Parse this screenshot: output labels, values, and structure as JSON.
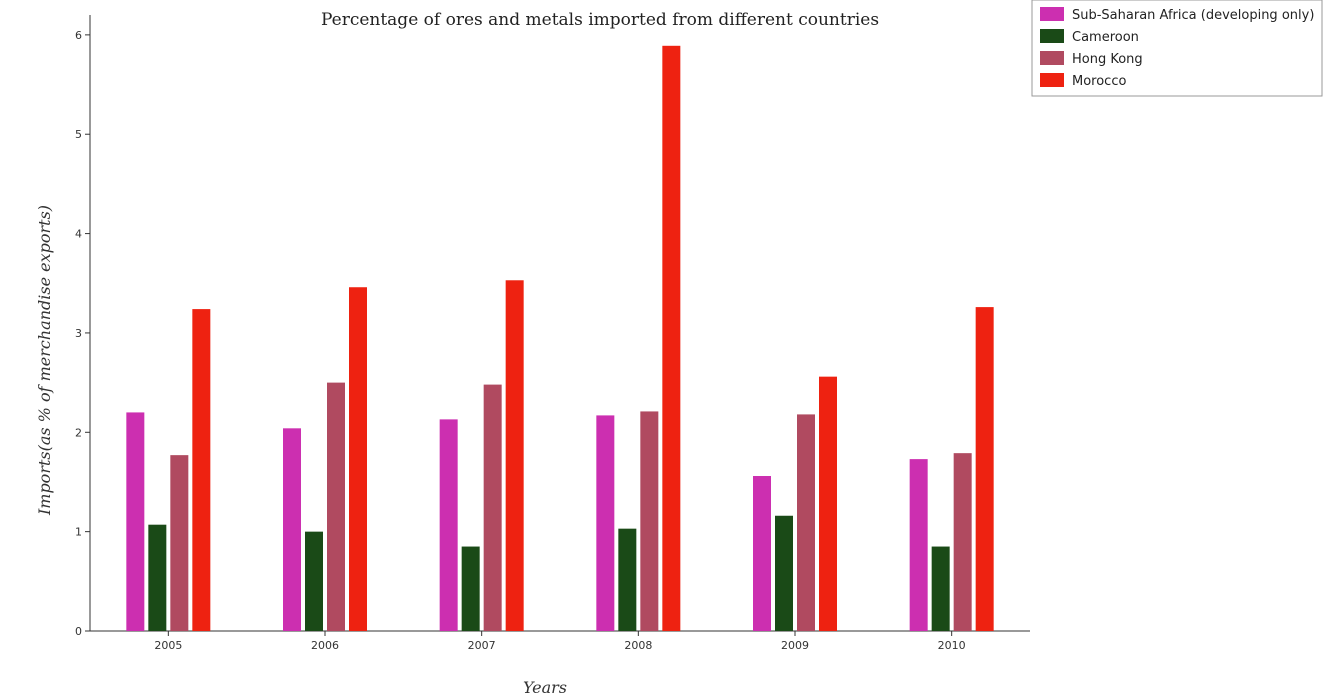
{
  "chart_data": {
    "type": "bar",
    "title": "Percentage of ores and metals imported from different countries",
    "xlabel": "Years",
    "ylabel": "Imports(as % of merchandise exports)",
    "categories": [
      "2005",
      "2006",
      "2007",
      "2008",
      "2009",
      "2010"
    ],
    "ylim": [
      0,
      6.2
    ],
    "yticks": [
      0,
      1,
      2,
      3,
      4,
      5,
      6
    ],
    "series": [
      {
        "name": "Sub-Saharan Africa (developing only)",
        "color": "#cc2fb0",
        "values": [
          2.2,
          2.04,
          2.13,
          2.17,
          1.56,
          1.73
        ]
      },
      {
        "name": "Cameroon",
        "color": "#1a4a17",
        "values": [
          1.07,
          1.0,
          0.85,
          1.03,
          1.16,
          0.85
        ]
      },
      {
        "name": "Hong Kong",
        "color": "#b04a60",
        "values": [
          1.77,
          2.5,
          2.48,
          2.21,
          2.18,
          1.79
        ]
      },
      {
        "name": "Morocco",
        "color": "#ee2211",
        "values": [
          3.24,
          3.46,
          3.53,
          5.89,
          2.56,
          3.26
        ]
      }
    ],
    "legend_position": "top-right"
  }
}
